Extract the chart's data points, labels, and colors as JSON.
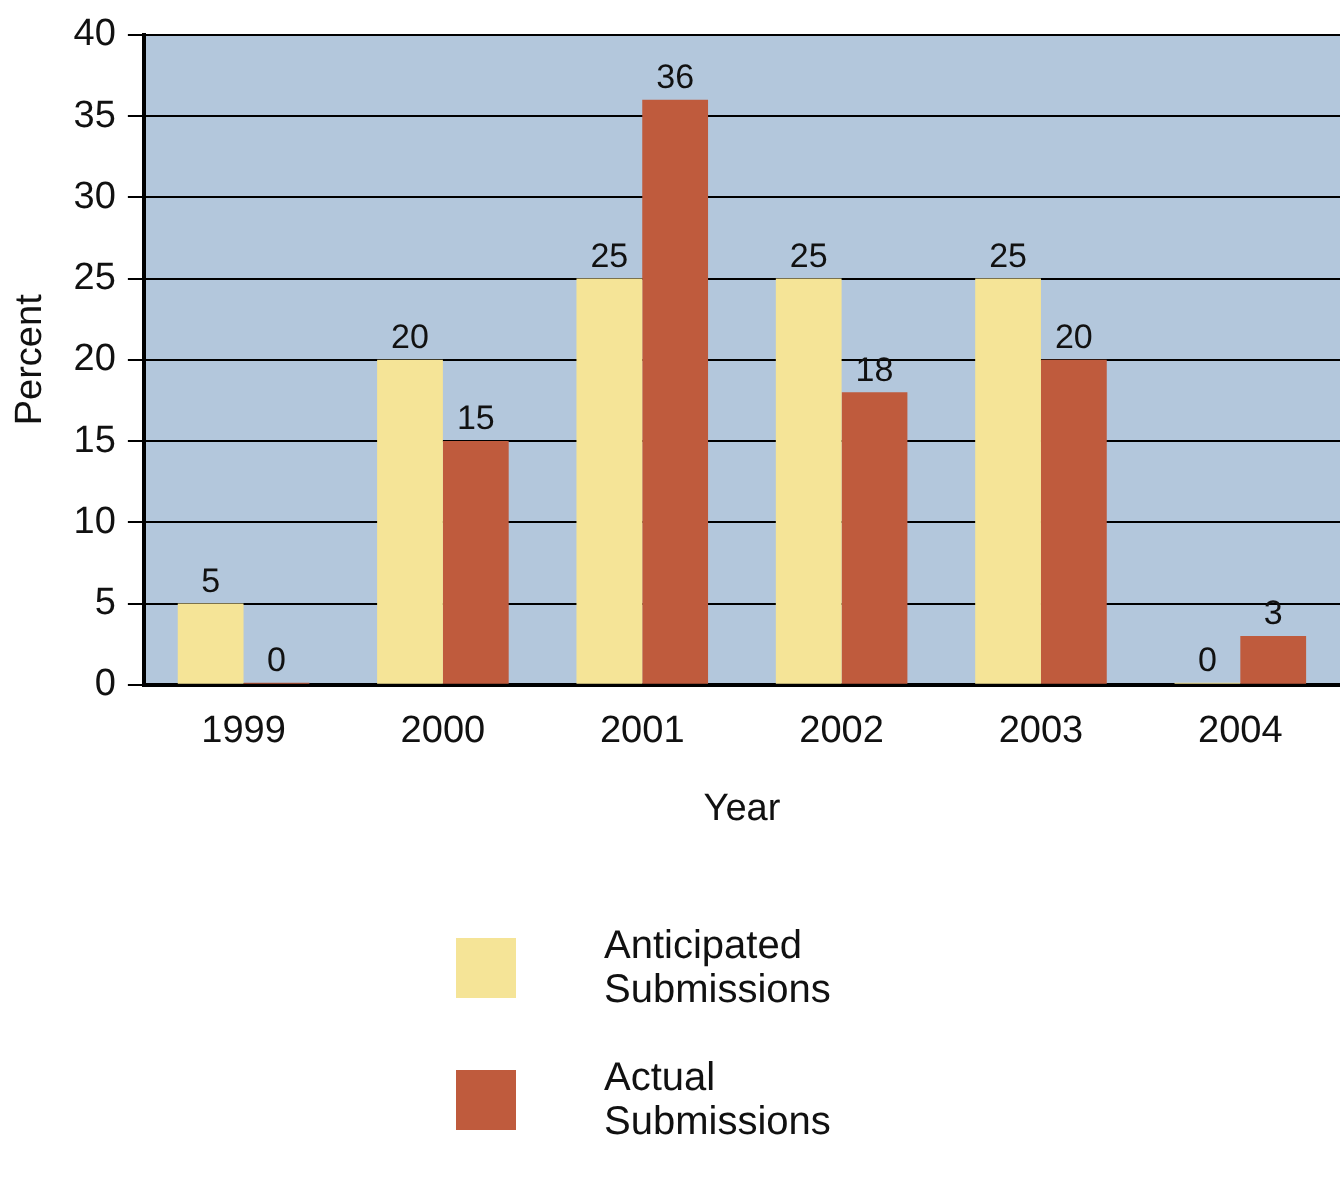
{
  "chart_data": {
    "type": "bar",
    "xlabel": "Year",
    "ylabel": "Percent",
    "categories": [
      "1999",
      "2000",
      "2001",
      "2002",
      "2003",
      "2004"
    ],
    "series": [
      {
        "name": "Anticipated Submissions",
        "color": "#f5e497",
        "values": [
          5,
          20,
          25,
          25,
          25,
          0
        ]
      },
      {
        "name": "Actual Submissions",
        "color": "#bf5b3d",
        "values": [
          0,
          15,
          36,
          18,
          20,
          3
        ]
      }
    ],
    "ylim": [
      0,
      40
    ],
    "yticks": [
      0,
      5,
      10,
      15,
      20,
      25,
      30,
      35,
      40
    ],
    "grid": "y",
    "legend": "bottom",
    "data_labels": true
  }
}
